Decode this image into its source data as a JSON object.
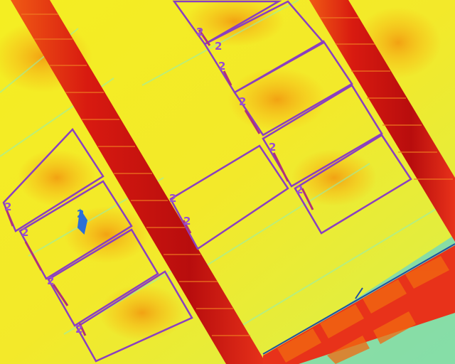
{
  "image": {
    "kind": "thermal-aerial",
    "palette": [
      "#00c8ff",
      "#7df0c8",
      "#f2f21a",
      "#f6c21b",
      "#f08a10",
      "#e8321a",
      "#b80d0d"
    ],
    "annotation_color": "#8a3fc0",
    "highlight_color": "#2a6fd8"
  },
  "annotations": [
    {
      "label": "2"
    },
    {
      "label": "2"
    },
    {
      "label": "2"
    },
    {
      "label": "2"
    },
    {
      "label": "2"
    },
    {
      "label": "2"
    },
    {
      "label": "2"
    },
    {
      "label": "2"
    },
    {
      "label": "2"
    },
    {
      "label": "2"
    },
    {
      "label": "2"
    },
    {
      "label": "2"
    },
    {
      "label": "2"
    }
  ]
}
